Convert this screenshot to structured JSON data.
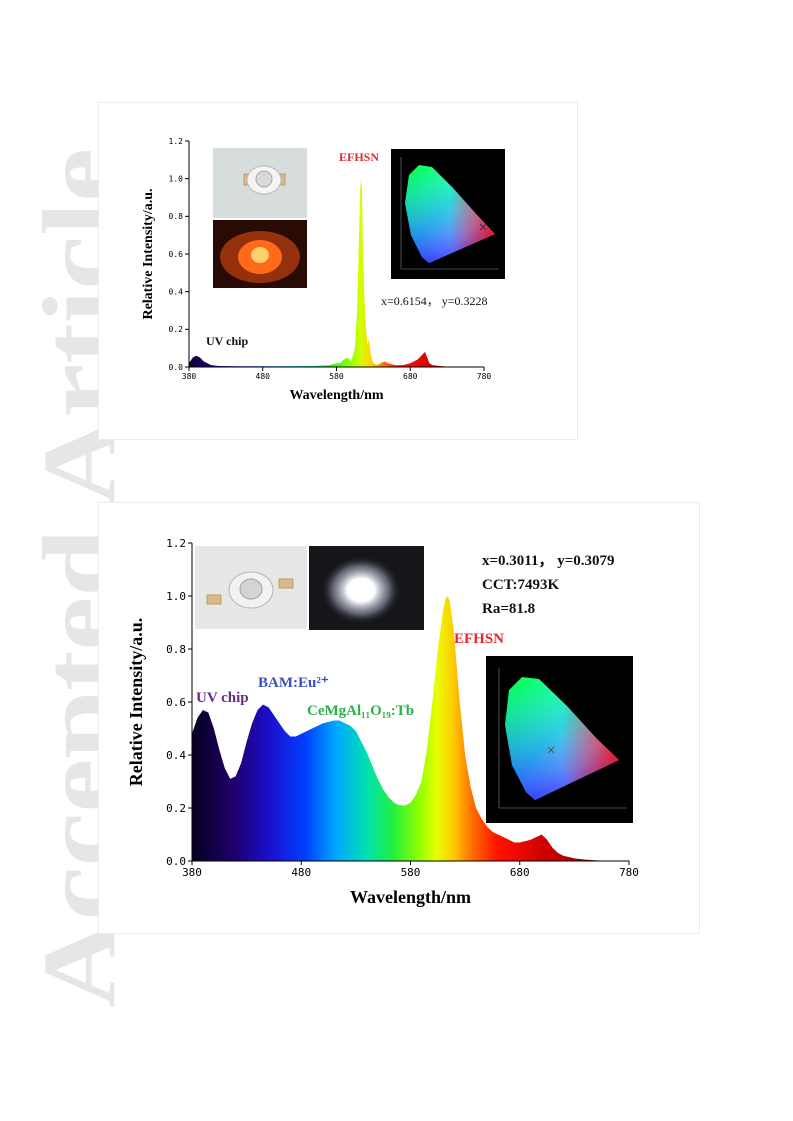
{
  "watermark": {
    "text": "Accepted Article",
    "color": "#e6e6e6"
  },
  "chart_data": [
    {
      "type": "area",
      "title": "",
      "xlabel": "Wavelength/nm",
      "ylabel": "Relative Intensity/a.u.",
      "xlim": [
        380,
        780
      ],
      "ylim": [
        0,
        1.2
      ],
      "xticks": [
        "380",
        "480",
        "580",
        "680",
        "780"
      ],
      "yticks": [
        "0.0",
        "0.2",
        "0.4",
        "0.6",
        "0.8",
        "1.0",
        "1.2"
      ],
      "fill": "spectral-gradient",
      "x": [
        380,
        385,
        390,
        395,
        400,
        410,
        420,
        450,
        500,
        550,
        570,
        580,
        585,
        590,
        595,
        600,
        605,
        608,
        610,
        612,
        614,
        615,
        616,
        618,
        620,
        622,
        624,
        626,
        628,
        630,
        635,
        640,
        645,
        650,
        660,
        670,
        680,
        690,
        695,
        700,
        702,
        704,
        706,
        710,
        720,
        730,
        780
      ],
      "y": [
        0.02,
        0.05,
        0.06,
        0.05,
        0.03,
        0.01,
        0.005,
        0.004,
        0.004,
        0.005,
        0.01,
        0.02,
        0.02,
        0.04,
        0.05,
        0.03,
        0.1,
        0.3,
        0.6,
        0.95,
        1.0,
        0.85,
        0.6,
        0.35,
        0.2,
        0.12,
        0.15,
        0.08,
        0.04,
        0.02,
        0.01,
        0.02,
        0.03,
        0.02,
        0.01,
        0.01,
        0.02,
        0.04,
        0.06,
        0.08,
        0.06,
        0.04,
        0.02,
        0.01,
        0.005,
        0.002,
        0.0
      ],
      "annotations": [
        {
          "text": "UV chip",
          "color": "#111111"
        },
        {
          "text": "EFHSN",
          "color": "#e8262b"
        },
        {
          "text": "x=0.6154， y=0.3228",
          "color": "#111111"
        }
      ],
      "insets": [
        "led-chip-photo",
        "led-glowing-red-photo",
        "cie-chromaticity-diagram"
      ],
      "cie_point": {
        "x": 0.6154,
        "y": 0.3228
      }
    },
    {
      "type": "area",
      "title": "",
      "xlabel": "Wavelength/nm",
      "ylabel": "Relative Intensity/a.u.",
      "xlim": [
        380,
        780
      ],
      "ylim": [
        0,
        1.2
      ],
      "xticks": [
        "380",
        "480",
        "580",
        "680",
        "780"
      ],
      "yticks": [
        "0.0",
        "0.2",
        "0.4",
        "0.6",
        "0.8",
        "1.0",
        "1.2"
      ],
      "fill": "spectral-gradient",
      "x": [
        380,
        385,
        390,
        395,
        400,
        405,
        410,
        415,
        420,
        425,
        430,
        435,
        440,
        445,
        450,
        455,
        460,
        465,
        470,
        475,
        480,
        485,
        490,
        495,
        500,
        505,
        510,
        515,
        520,
        525,
        530,
        535,
        540,
        545,
        550,
        555,
        560,
        565,
        570,
        575,
        580,
        585,
        590,
        595,
        600,
        605,
        610,
        612,
        614,
        616,
        618,
        620,
        625,
        630,
        635,
        640,
        645,
        650,
        655,
        660,
        665,
        670,
        675,
        680,
        685,
        690,
        695,
        700,
        705,
        710,
        715,
        720,
        730,
        740,
        760,
        780
      ],
      "y": [
        0.48,
        0.54,
        0.57,
        0.56,
        0.5,
        0.42,
        0.35,
        0.31,
        0.32,
        0.37,
        0.45,
        0.52,
        0.57,
        0.59,
        0.58,
        0.55,
        0.52,
        0.49,
        0.47,
        0.47,
        0.48,
        0.49,
        0.5,
        0.51,
        0.52,
        0.525,
        0.53,
        0.53,
        0.52,
        0.51,
        0.49,
        0.45,
        0.41,
        0.36,
        0.31,
        0.27,
        0.24,
        0.22,
        0.21,
        0.21,
        0.22,
        0.25,
        0.3,
        0.42,
        0.6,
        0.8,
        0.95,
        0.99,
        1.0,
        0.98,
        0.92,
        0.85,
        0.6,
        0.4,
        0.28,
        0.2,
        0.16,
        0.13,
        0.11,
        0.1,
        0.09,
        0.08,
        0.07,
        0.07,
        0.075,
        0.08,
        0.09,
        0.1,
        0.08,
        0.05,
        0.03,
        0.02,
        0.01,
        0.005,
        0.0,
        0.0
      ],
      "annotations": [
        {
          "text": "UV chip",
          "color": "#6a2a8a"
        },
        {
          "text": "BAM:Eu²⁺",
          "color": "#3a4fc4"
        },
        {
          "text": "CeMgAl₁₁O₁₉:Tb",
          "color": "#2bb24c"
        },
        {
          "text": "EFHSN",
          "color": "#e8262b"
        }
      ],
      "info": [
        "x=0.3011， y=0.3079",
        "CCT:7493K",
        "Ra=81.8"
      ],
      "insets": [
        "led-chip-photo",
        "led-glowing-white-photo",
        "cie-chromaticity-diagram"
      ],
      "cie_point": {
        "x": 0.3011,
        "y": 0.3079
      }
    }
  ]
}
